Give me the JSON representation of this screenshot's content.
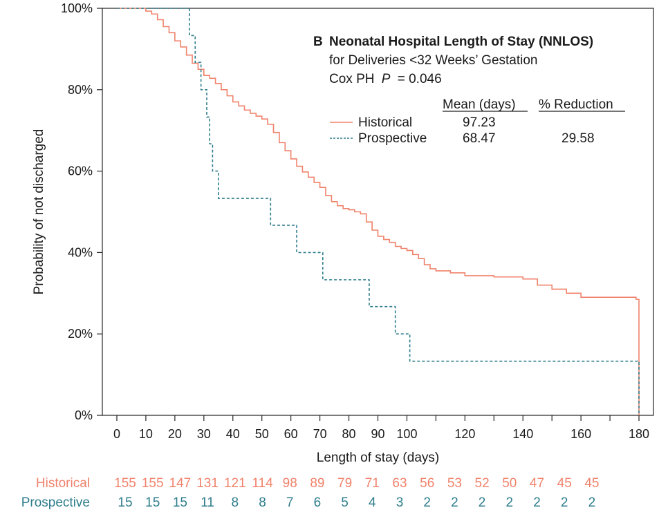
{
  "chart_data": {
    "type": "line",
    "subtype": "kaplan-meier-step",
    "panel_letter": "B",
    "title": "Neonatal Hospital Length of Stay (NNLOS)",
    "subtitle": "for Deliveries <32 Weeks’ Gestation",
    "stat_prefix": "Cox PH",
    "stat_p": "P",
    "stat_value": "= 0.046",
    "xlabel": "Length of stay (days)",
    "ylabel": "Probability of not discharged",
    "xlim": [
      -5,
      185
    ],
    "ylim": [
      0,
      1
    ],
    "x_ticks": [
      0,
      10,
      20,
      30,
      40,
      50,
      60,
      70,
      80,
      90,
      100,
      120,
      140,
      160,
      180
    ],
    "x_minor_ticks": [
      110,
      130,
      150,
      170
    ],
    "y_ticks": [
      0,
      0.2,
      0.4,
      0.6,
      0.8,
      1.0
    ],
    "y_tick_labels": [
      "0%",
      "20%",
      "40%",
      "60%",
      "80%",
      "100%"
    ],
    "grid": false,
    "legend": {
      "position": "top-right",
      "col_mean": "Mean (days)",
      "col_reduction": "% Reduction",
      "rows": [
        {
          "name": "Historical",
          "mean": "97.23",
          "reduction": ""
        },
        {
          "name": "Prospective",
          "mean": "68.47",
          "reduction": "29.58"
        }
      ]
    },
    "series": [
      {
        "name": "Historical",
        "color": "#f0826b",
        "style": "solid",
        "x": [
          0,
          10,
          12,
          14,
          16,
          18,
          20,
          22,
          24,
          26,
          28,
          30,
          32,
          34,
          36,
          38,
          40,
          42,
          44,
          46,
          48,
          50,
          52,
          54,
          56,
          58,
          60,
          62,
          64,
          66,
          68,
          70,
          72,
          74,
          76,
          78,
          80,
          82,
          84,
          86,
          88,
          90,
          92,
          94,
          96,
          98,
          100,
          102,
          104,
          106,
          108,
          110,
          115,
          120,
          130,
          140,
          145,
          150,
          155,
          160,
          170,
          175,
          179,
          180
        ],
        "y": [
          1.0,
          0.993,
          0.986,
          0.972,
          0.955,
          0.94,
          0.92,
          0.905,
          0.885,
          0.865,
          0.85,
          0.835,
          0.828,
          0.815,
          0.8,
          0.785,
          0.77,
          0.76,
          0.75,
          0.742,
          0.735,
          0.728,
          0.715,
          0.695,
          0.67,
          0.65,
          0.63,
          0.612,
          0.598,
          0.585,
          0.572,
          0.56,
          0.54,
          0.525,
          0.515,
          0.508,
          0.505,
          0.5,
          0.495,
          0.475,
          0.455,
          0.44,
          0.432,
          0.425,
          0.415,
          0.41,
          0.405,
          0.395,
          0.385,
          0.37,
          0.36,
          0.355,
          0.35,
          0.343,
          0.34,
          0.335,
          0.32,
          0.31,
          0.3,
          0.29,
          0.29,
          0.29,
          0.285,
          0.0
        ]
      },
      {
        "name": "Prospective",
        "color": "#2e7d8c",
        "style": "dashed",
        "x": [
          0,
          25,
          27,
          29,
          31,
          32,
          33,
          35,
          53,
          62,
          71,
          87,
          96,
          101,
          180
        ],
        "y": [
          1.0,
          0.933,
          0.867,
          0.8,
          0.733,
          0.667,
          0.6,
          0.533,
          0.467,
          0.4,
          0.333,
          0.267,
          0.2,
          0.133,
          0.0
        ]
      }
    ],
    "risk_table": {
      "times": [
        0,
        10,
        20,
        30,
        40,
        50,
        60,
        70,
        80,
        90,
        100,
        110,
        120,
        130,
        140,
        150,
        160,
        170
      ],
      "rows": [
        {
          "label": "Historical",
          "color": "#f0826b",
          "values": [
            "155",
            "155",
            "147",
            "131",
            "121",
            "114",
            "98",
            "89",
            "79",
            "71",
            "63",
            "56",
            "53",
            "52",
            "50",
            "47",
            "45",
            "45"
          ]
        },
        {
          "label": "Prospective",
          "color": "#2e7d8c",
          "values": [
            "15",
            "15",
            "15",
            "11",
            "8",
            "8",
            "7",
            "6",
            "5",
            "4",
            "3",
            "2",
            "2",
            "2",
            "2",
            "2",
            "2",
            "2"
          ]
        }
      ]
    }
  }
}
